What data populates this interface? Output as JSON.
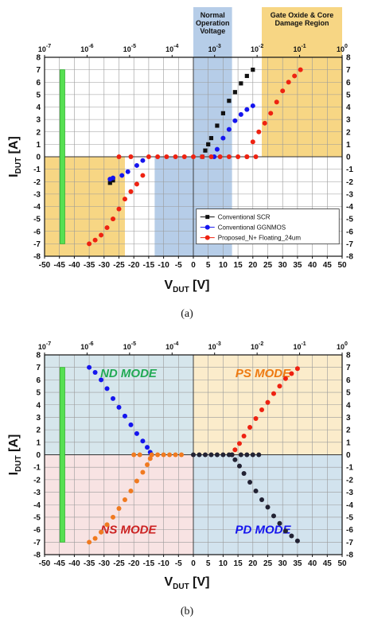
{
  "chart_data": [
    {
      "id": "a",
      "type": "scatter",
      "caption": "(a)",
      "xlabel": "V",
      "xlabel_sub": "DUT",
      "xlabel_unit": "[V]",
      "ylabel": "I",
      "ylabel_sub": "DUT",
      "ylabel_unit": "[A]",
      "xlim": [
        -50,
        50
      ],
      "ylim": [
        -8,
        8
      ],
      "xticks": [
        "-50",
        "-45",
        "-40",
        "-35",
        "-30",
        "-25",
        "-20",
        "-15",
        "-10",
        "-5",
        "0",
        "5",
        "10",
        "15",
        "20",
        "25",
        "30",
        "35",
        "40",
        "45",
        "50"
      ],
      "yticks": [
        "8",
        "7",
        "6",
        "5",
        "4",
        "3",
        "2",
        "1",
        "0",
        "-1",
        "-2",
        "-3",
        "-4",
        "-5",
        "-6",
        "-7",
        "-8"
      ],
      "top_axis": {
        "type": "log",
        "ticks": [
          {
            "base": "10",
            "exp": "-7"
          },
          {
            "base": "10",
            "exp": "-6"
          },
          {
            "base": "10",
            "exp": "-5"
          },
          {
            "base": "10",
            "exp": "-4"
          },
          {
            "base": "10",
            "exp": "-3"
          },
          {
            "base": "10",
            "exp": "-2"
          },
          {
            "base": "10",
            "exp": "-1"
          },
          {
            "base": "10",
            "exp": "0"
          }
        ]
      },
      "grid": true,
      "regions": [
        {
          "label_lines": [
            "Normal",
            "Operation",
            "Voltage"
          ],
          "x_range": [
            0,
            13
          ],
          "color": "#a9c4e4"
        },
        {
          "label_lines": [
            "Gate Oxide & Core",
            "Damage Region"
          ],
          "x_range": [
            23,
            50
          ],
          "color": "#f6cf6e"
        }
      ],
      "shaded_boxes": [
        {
          "x_range": [
            0,
            13
          ],
          "y_range": [
            -8,
            8
          ],
          "color": "#a9c4e4"
        },
        {
          "x_range": [
            -13,
            0
          ],
          "y_range": [
            -8,
            0
          ],
          "color": "#a9c4e4"
        },
        {
          "x_range": [
            23,
            50
          ],
          "y_range": [
            0,
            8
          ],
          "color": "#f6cf6e"
        },
        {
          "x_range": [
            -50,
            -23
          ],
          "y_range": [
            -8,
            0
          ],
          "color": "#f6cf6e"
        }
      ],
      "leakage_bar": {
        "x": -44,
        "y_range": [
          -7,
          7
        ],
        "color": "#56e052"
      },
      "legend": {
        "position": "bottom-right"
      },
      "series": [
        {
          "name": "Conventional SCR",
          "color": "#111111",
          "marker": "square",
          "points": [
            [
              3,
              0
            ],
            [
              4,
              0.5
            ],
            [
              5,
              1
            ],
            [
              6,
              1.5
            ],
            [
              8,
              2.5
            ],
            [
              10,
              3.5
            ],
            [
              12,
              4.5
            ],
            [
              14,
              5.2
            ],
            [
              16,
              5.9
            ],
            [
              18,
              6.5
            ],
            [
              20,
              7
            ],
            [
              -28,
              -2.1
            ],
            [
              -27,
              -1.9
            ]
          ]
        },
        {
          "name": "Conventional GGNMOS",
          "color": "#1515ee",
          "marker": "circle",
          "points": [
            [
              7,
              0
            ],
            [
              8,
              0.6
            ],
            [
              10,
              1.5
            ],
            [
              12,
              2.2
            ],
            [
              14,
              2.9
            ],
            [
              16,
              3.4
            ],
            [
              18,
              3.8
            ],
            [
              20,
              4.1
            ],
            [
              -17,
              -0.3
            ],
            [
              -19,
              -0.7
            ],
            [
              -22,
              -1.2
            ],
            [
              -24,
              -1.5
            ],
            [
              -27,
              -1.7
            ],
            [
              -28,
              -1.8
            ]
          ]
        },
        {
          "name": "Proposed_N+ Floating_24um",
          "color": "#ee2211",
          "marker": "circle",
          "points": [
            [
              -15,
              0
            ],
            [
              -12,
              0
            ],
            [
              -9,
              0
            ],
            [
              -6,
              0
            ],
            [
              -3,
              0
            ],
            [
              0,
              0
            ],
            [
              3,
              0
            ],
            [
              6,
              0
            ],
            [
              9,
              0
            ],
            [
              12,
              0
            ],
            [
              15,
              0
            ],
            [
              18,
              0
            ],
            [
              21,
              0
            ],
            [
              -25,
              0
            ],
            [
              -21,
              0
            ],
            [
              18,
              0
            ],
            [
              20,
              1.2
            ],
            [
              22,
              2
            ],
            [
              24,
              2.7
            ],
            [
              26,
              3.5
            ],
            [
              28,
              4.4
            ],
            [
              30,
              5.3
            ],
            [
              32,
              6
            ],
            [
              34,
              6.5
            ],
            [
              36,
              7
            ],
            [
              -17,
              -1.5
            ],
            [
              -19,
              -2.2
            ],
            [
              -21,
              -2.8
            ],
            [
              -23,
              -3.4
            ],
            [
              -25,
              -4.2
            ],
            [
              -27,
              -5
            ],
            [
              -29,
              -5.7
            ],
            [
              -31,
              -6.3
            ],
            [
              -33,
              -6.7
            ],
            [
              -35,
              -7
            ]
          ]
        }
      ]
    },
    {
      "id": "b",
      "type": "scatter",
      "caption": "(b)",
      "xlabel": "V",
      "xlabel_sub": "DUT",
      "xlabel_unit": "[V]",
      "ylabel": "I",
      "ylabel_sub": "DUT",
      "ylabel_unit": "[A]",
      "xlim": [
        -50,
        50
      ],
      "ylim": [
        -8,
        8
      ],
      "xticks": [
        "-50",
        "-45",
        "-40",
        "-35",
        "-30",
        "-25",
        "-20",
        "-15",
        "-10",
        "-5",
        "0",
        "5",
        "10",
        "15",
        "20",
        "25",
        "30",
        "35",
        "40",
        "45",
        "50"
      ],
      "yticks": [
        "8",
        "7",
        "6",
        "5",
        "4",
        "3",
        "2",
        "1",
        "0",
        "-1",
        "-2",
        "-3",
        "-4",
        "-5",
        "-6",
        "-7",
        "-8"
      ],
      "top_axis": {
        "type": "log",
        "ticks": [
          {
            "base": "10",
            "exp": "-7"
          },
          {
            "base": "10",
            "exp": "-6"
          },
          {
            "base": "10",
            "exp": "-5"
          },
          {
            "base": "10",
            "exp": "-4"
          },
          {
            "base": "10",
            "exp": "-3"
          },
          {
            "base": "10",
            "exp": "-2"
          },
          {
            "base": "10",
            "exp": "-1"
          },
          {
            "base": "10",
            "exp": "0"
          }
        ]
      },
      "grid": true,
      "quadrants": [
        {
          "label": "ND MODE",
          "x_range": [
            -50,
            0
          ],
          "y_range": [
            0,
            8
          ],
          "fill": "#d6e6ec",
          "text_color": "#22aa55"
        },
        {
          "label": "PS MODE",
          "x_range": [
            0,
            50
          ],
          "y_range": [
            0,
            8
          ],
          "fill": "#fbeccb",
          "text_color": "#ee7a11"
        },
        {
          "label": "NS MODE",
          "x_range": [
            -50,
            0
          ],
          "y_range": [
            -8,
            0
          ],
          "fill": "#f8e3e3",
          "text_color": "#cc2222"
        },
        {
          "label": "PD MODE",
          "x_range": [
            0,
            50
          ],
          "y_range": [
            -8,
            0
          ],
          "fill": "#d2e3ee",
          "text_color": "#1515ee"
        }
      ],
      "leakage_bar": {
        "x": -44,
        "y_range": [
          -7,
          7
        ],
        "color": "#56e052"
      },
      "series": [
        {
          "color": "#1515ee",
          "marker": "circle",
          "points": [
            [
              -35,
              7
            ],
            [
              -33,
              6.6
            ],
            [
              -31,
              6
            ],
            [
              -29,
              5.3
            ],
            [
              -27,
              4.5
            ],
            [
              -25,
              3.8
            ],
            [
              -23,
              3.1
            ],
            [
              -21,
              2.4
            ],
            [
              -19,
              1.7
            ],
            [
              -17,
              1.1
            ],
            [
              -15.5,
              0.6
            ],
            [
              -14.5,
              0.2
            ],
            [
              -14,
              0
            ]
          ]
        },
        {
          "color": "#f07a20",
          "marker": "circle",
          "points": [
            [
              -14,
              0
            ],
            [
              -14.5,
              -0.3
            ],
            [
              -15.5,
              -0.8
            ],
            [
              -17,
              -1.4
            ],
            [
              -19,
              -2.1
            ],
            [
              -21,
              -2.9
            ],
            [
              -23,
              -3.6
            ],
            [
              -25,
              -4.3
            ],
            [
              -27,
              -5
            ],
            [
              -29,
              -5.6
            ],
            [
              -31,
              -6.2
            ],
            [
              -33,
              -6.7
            ],
            [
              -35,
              -7
            ],
            [
              -20,
              0
            ],
            [
              -18,
              0
            ],
            [
              -12,
              0
            ],
            [
              -10,
              0
            ],
            [
              -8,
              0
            ],
            [
              -6,
              0
            ],
            [
              -4,
              0
            ]
          ]
        },
        {
          "color": "#ee2211",
          "marker": "circle",
          "points": [
            [
              13,
              0
            ],
            [
              14,
              0.4
            ],
            [
              15.5,
              0.9
            ],
            [
              17,
              1.5
            ],
            [
              19,
              2.2
            ],
            [
              21,
              2.9
            ],
            [
              23,
              3.6
            ],
            [
              25,
              4.2
            ],
            [
              27,
              4.9
            ],
            [
              29,
              5.5
            ],
            [
              31,
              6.1
            ],
            [
              33,
              6.5
            ],
            [
              35,
              6.9
            ]
          ]
        },
        {
          "color": "#222233",
          "marker": "circle",
          "points": [
            [
              13,
              0
            ],
            [
              14,
              -0.4
            ],
            [
              15.5,
              -0.9
            ],
            [
              17,
              -1.5
            ],
            [
              19,
              -2.2
            ],
            [
              21,
              -2.9
            ],
            [
              23,
              -3.6
            ],
            [
              25,
              -4.2
            ],
            [
              27,
              -4.9
            ],
            [
              29,
              -5.5
            ],
            [
              31,
              -6.1
            ],
            [
              33,
              -6.5
            ],
            [
              35,
              -6.9
            ],
            [
              0,
              0
            ],
            [
              2,
              0
            ],
            [
              4,
              0
            ],
            [
              6,
              0
            ],
            [
              8,
              0
            ],
            [
              10,
              0
            ],
            [
              12,
              0
            ],
            [
              16,
              0
            ],
            [
              18,
              0
            ],
            [
              20,
              0
            ],
            [
              22,
              0
            ]
          ]
        }
      ]
    }
  ]
}
